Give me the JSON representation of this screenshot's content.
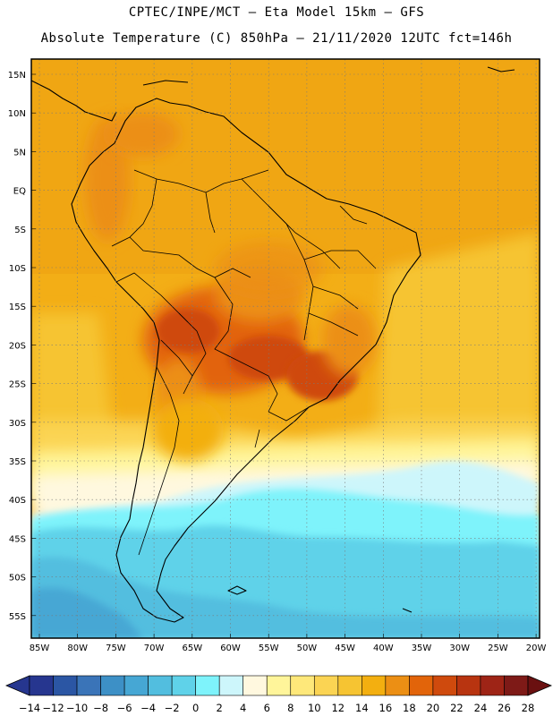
{
  "header": {
    "line1": "CPTEC/INPE/MCT –  Eta Model 15km – GFS",
    "line2": "Absolute Temperature (C) 850hPa – 21/11/2020 12UTC fct=146h"
  },
  "map": {
    "lat_labels": [
      "15N",
      "10N",
      "5N",
      "EQ",
      "5S",
      "10S",
      "15S",
      "20S",
      "25S",
      "30S",
      "35S",
      "40S",
      "45S",
      "50S",
      "55S"
    ],
    "lon_labels": [
      "85W",
      "80W",
      "75W",
      "70W",
      "65W",
      "60W",
      "55W",
      "50W",
      "45W",
      "40W",
      "35W",
      "30W",
      "25W",
      "20W"
    ]
  },
  "colorbar": {
    "labels": [
      "-14",
      "-12",
      "-10",
      "-8",
      "-6",
      "-4",
      "-2",
      "0",
      "2",
      "4",
      "6",
      "8",
      "10",
      "12",
      "14",
      "16",
      "18",
      "20",
      "22",
      "24",
      "26",
      "28"
    ],
    "colors": [
      "#26368f",
      "#2b56a4",
      "#3a74b8",
      "#3d90c6",
      "#46a7d4",
      "#52bedf",
      "#5fd2e9",
      "#7ef3fb",
      "#cdf6fb",
      "#fff8df",
      "#fff59a",
      "#fee87a",
      "#fbd453",
      "#f6c432",
      "#f3af10",
      "#ec8f14",
      "#e2640a",
      "#cf4a0d",
      "#b83410",
      "#9e2416",
      "#7e1a17"
    ]
  }
}
